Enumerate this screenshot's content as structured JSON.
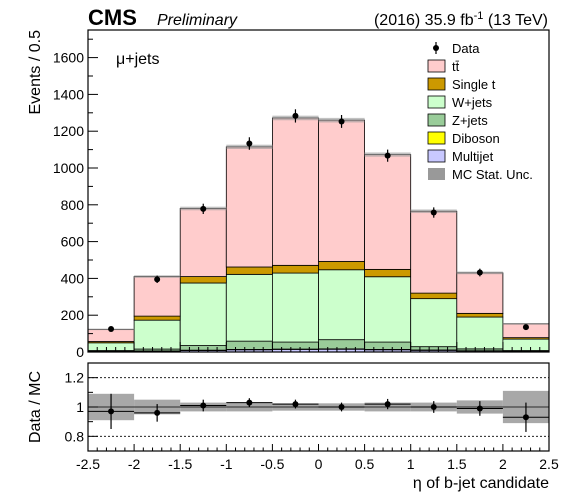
{
  "header": {
    "experiment": "CMS",
    "status": "Preliminary",
    "lumi_prefix": "(2016) 35.9 fb",
    "lumi_exp": "-1",
    "lumi_suffix": " (13 TeV)"
  },
  "chart_data": [
    {
      "type": "bar",
      "stacked": true,
      "annotation": "μ+jets",
      "ylabel": "Events / 0.5",
      "xlabel": "η of b-jet candidate",
      "xlim": [
        -2.5,
        2.5
      ],
      "ylim": [
        0,
        1750
      ],
      "x_ticks": [
        "-2.5",
        "-2",
        "-1.5",
        "-1",
        "-0.5",
        "0",
        "0.5",
        "1",
        "1.5",
        "2",
        "2.5"
      ],
      "y_ticks": [
        "0",
        "200",
        "400",
        "600",
        "800",
        "1000",
        "1200",
        "1400",
        "1600"
      ],
      "bin_edges": [
        -2.5,
        -2.0,
        -1.5,
        -1.0,
        -0.5,
        0.0,
        0.5,
        1.0,
        1.5,
        2.0,
        2.5
      ],
      "series": [
        {
          "name": "Multijet",
          "color": "#c8c8ff",
          "values": [
            3,
            5,
            8,
            12,
            14,
            15,
            12,
            9,
            6,
            3
          ]
        },
        {
          "name": "Diboson",
          "color": "#ffff00",
          "values": [
            1,
            1,
            2,
            2,
            2,
            2,
            2,
            2,
            1,
            1
          ]
        },
        {
          "name": "Z+jets",
          "color": "#99cc99",
          "values": [
            4,
            10,
            25,
            45,
            38,
            50,
            40,
            18,
            10,
            4
          ]
        },
        {
          "name": "W+jets",
          "color": "#ccffcc",
          "values": [
            42,
            157,
            340,
            363,
            375,
            380,
            355,
            261,
            173,
            62
          ]
        },
        {
          "name": "Single t",
          "color": "#cc9900",
          "values": [
            7,
            22,
            35,
            40,
            42,
            45,
            40,
            30,
            20,
            8
          ]
        },
        {
          "name": "tt̄",
          "color": "#ffcccc",
          "values": [
            66,
            215,
            370,
            653,
            801,
            768,
            624,
            445,
            220,
            75
          ]
        }
      ],
      "data": {
        "name": "Data",
        "values": [
          125,
          395,
          778,
          1133,
          1283,
          1253,
          1067,
          758,
          432,
          135
        ],
        "errors": [
          11,
          20,
          28,
          34,
          36,
          35,
          33,
          28,
          21,
          12
        ]
      },
      "legend": {
        "placement": "top-right",
        "entries": [
          "Data",
          "tt̄",
          "Single t",
          "W+jets",
          "Z+jets",
          "Diboson",
          "Multijet",
          "MC Stat. Unc."
        ]
      },
      "mc_unc_label": "MC Stat. Unc.",
      "mc_unc_color": "#999999"
    },
    {
      "type": "scatter",
      "ylabel": "Data / MC",
      "xlabel": "η of b-jet candidate",
      "xlim": [
        -2.5,
        2.5
      ],
      "ylim": [
        0.7,
        1.3
      ],
      "y_ticks": [
        "0.8",
        "1",
        "1.2"
      ],
      "reference_lines": [
        0.8,
        1.2
      ],
      "x_centers": [
        -2.25,
        -1.75,
        -1.25,
        -0.75,
        -0.25,
        0.25,
        0.75,
        1.25,
        1.75,
        2.25
      ],
      "ratio": [
        0.97,
        0.96,
        1.01,
        1.03,
        1.02,
        1.0,
        1.02,
        1.0,
        0.99,
        0.93
      ],
      "ratio_err": [
        0.12,
        0.06,
        0.04,
        0.03,
        0.03,
        0.03,
        0.035,
        0.04,
        0.05,
        0.1
      ],
      "mc_unc": [
        0.09,
        0.05,
        0.03,
        0.03,
        0.025,
        0.025,
        0.03,
        0.03,
        0.045,
        0.11
      ]
    }
  ]
}
